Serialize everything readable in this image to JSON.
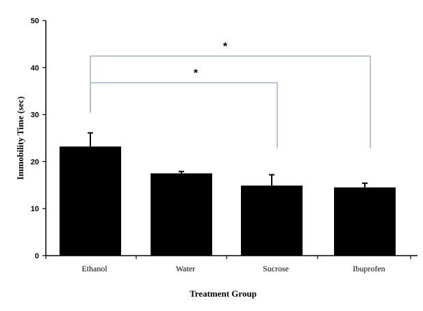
{
  "colors": {
    "bar": "#000000",
    "axis": "#000000",
    "bracket": "#9fb2c9",
    "background": "#ffffff"
  },
  "chart_data": {
    "type": "bar",
    "title": "",
    "xlabel": "Treatment Group",
    "ylabel": "Immobility Time (sec)",
    "ylim": [
      0,
      50
    ],
    "yticks": [
      0,
      10,
      20,
      30,
      40,
      50
    ],
    "categories": [
      "Ethanol",
      "Water",
      "Sucrose",
      "Ibuprofen"
    ],
    "values": [
      23.2,
      17.5,
      14.9,
      14.5
    ],
    "error": [
      2.9,
      0.4,
      2.3,
      0.9
    ],
    "grid": false,
    "legend": "none",
    "significance": [
      {
        "from": "Ethanol",
        "to": "Sucrose",
        "label": "*"
      },
      {
        "from": "Ethanol",
        "to": "Ibuprofen",
        "label": "*"
      }
    ]
  }
}
